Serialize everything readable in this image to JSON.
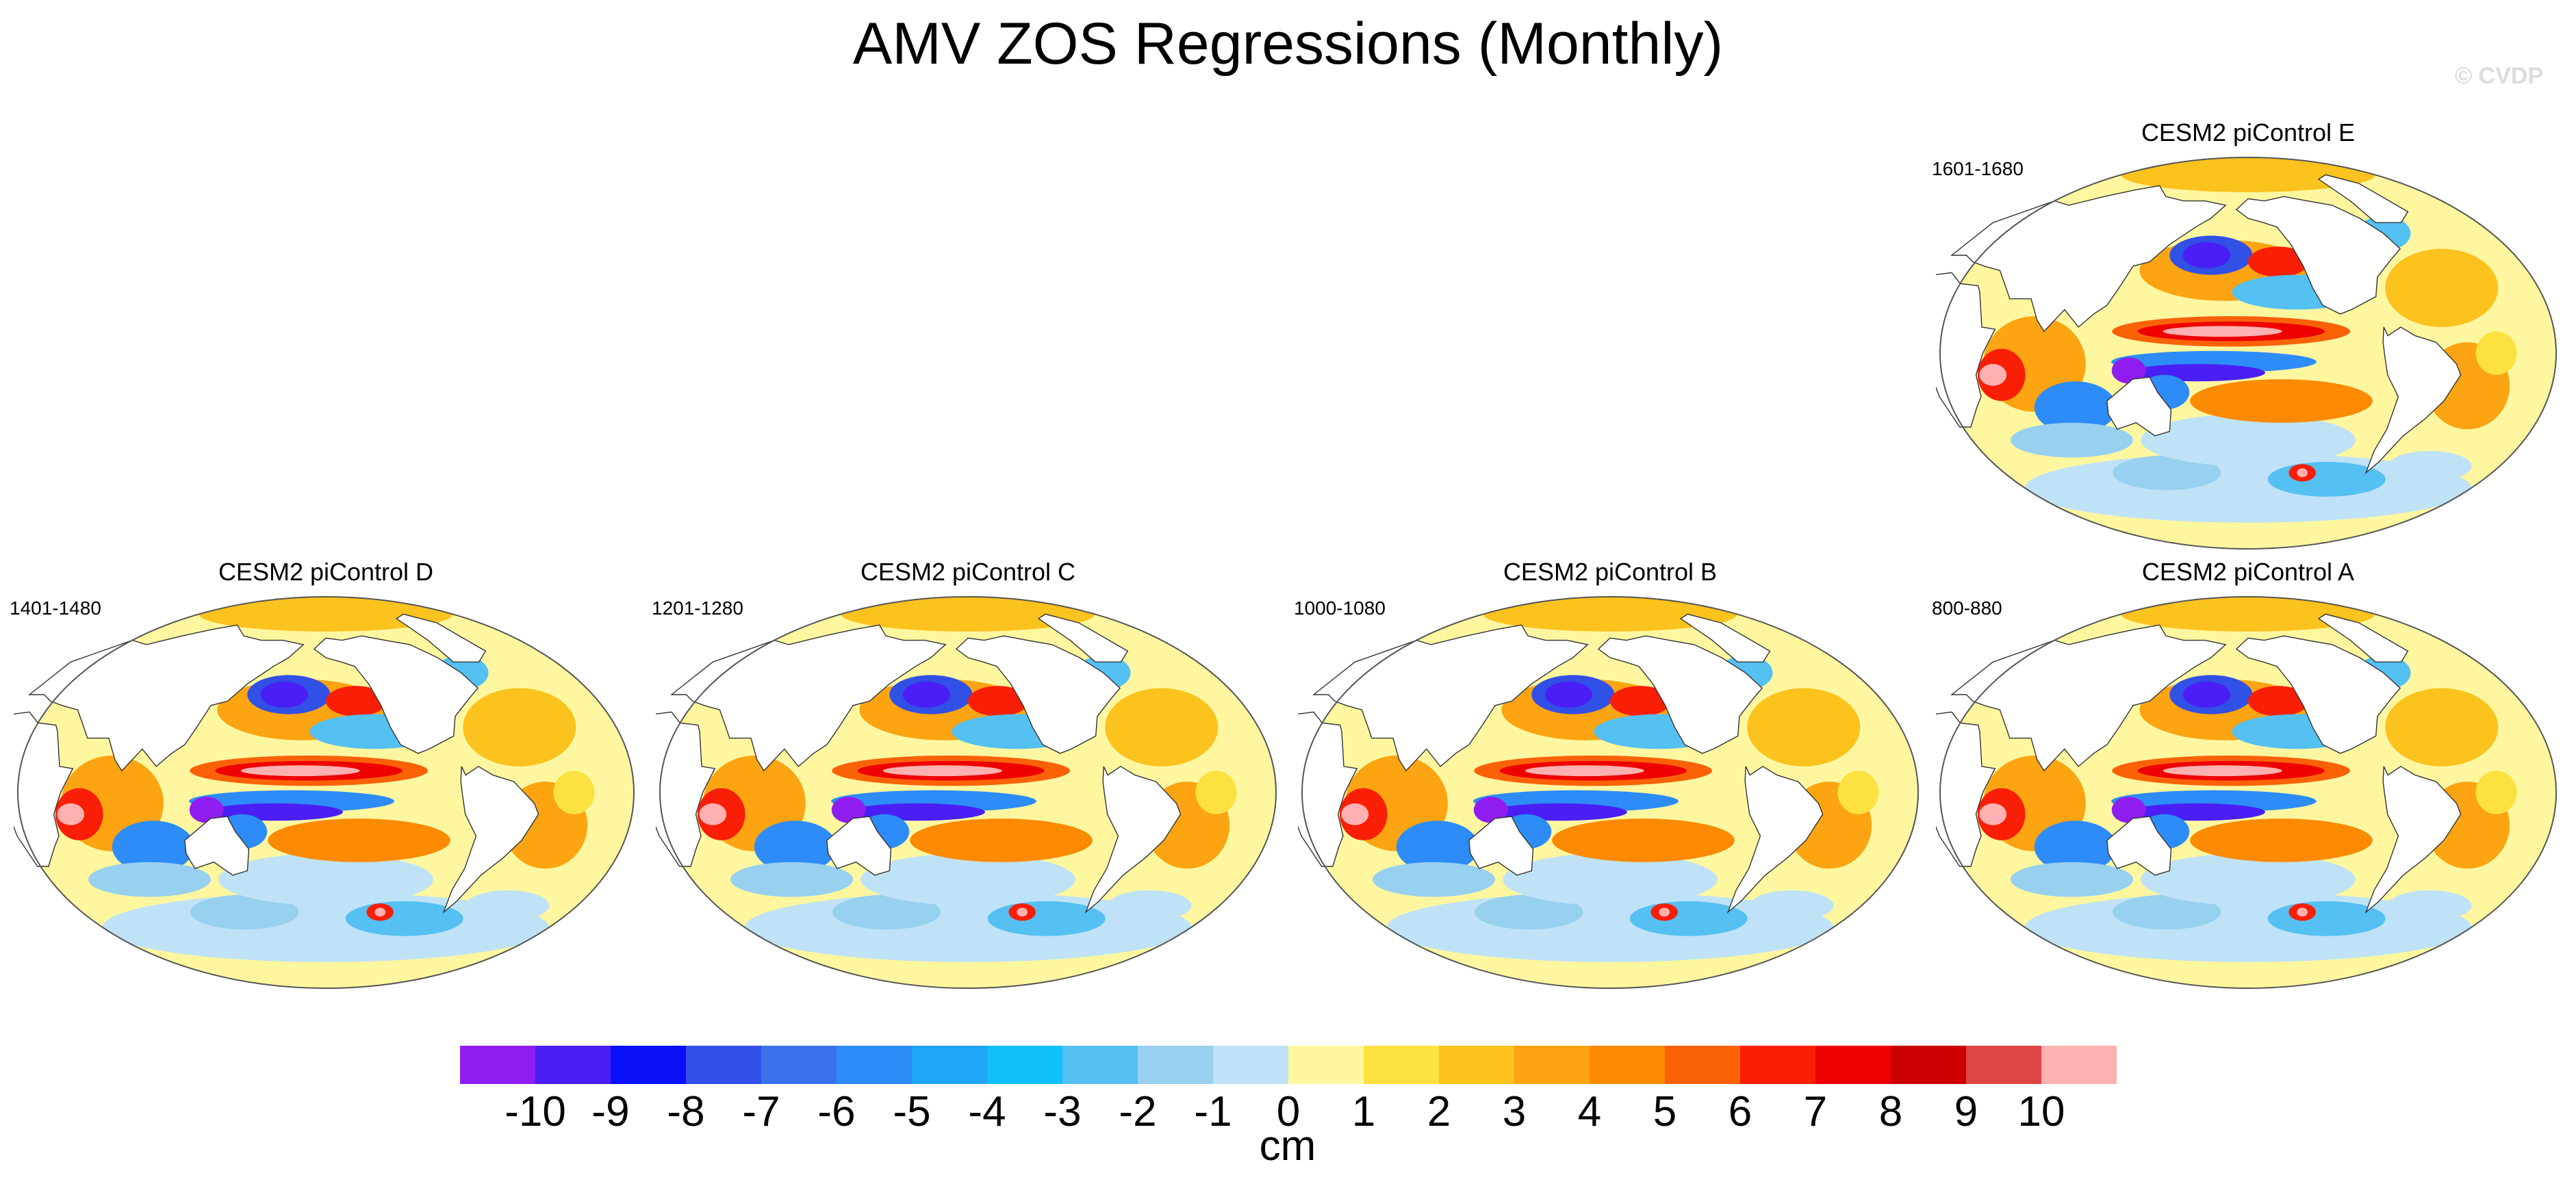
{
  "title": "AMV ZOS Regressions (Monthly)",
  "watermark": "© CVDP",
  "chart_data": {
    "type": "heatmap",
    "title": "AMV ZOS Regressions (Monthly)",
    "variable": "ZOS",
    "units": "cm",
    "panels": [
      {
        "title": "CESM2 piControl E",
        "years": "1601-1680"
      },
      {
        "title": "CESM2 piControl D",
        "years": "1401-1480"
      },
      {
        "title": "CESM2 piControl C",
        "years": "1201-1280"
      },
      {
        "title": "CESM2 piControl B",
        "years": "1000-1080"
      },
      {
        "title": "CESM2 piControl A",
        "years": "800-880"
      }
    ],
    "colorbar": {
      "levels": [
        "-10",
        "-9",
        "-8",
        "-7",
        "-6",
        "-5",
        "-4",
        "-3",
        "-2",
        "-1",
        "0",
        "1",
        "2",
        "3",
        "4",
        "5",
        "6",
        "7",
        "8",
        "9",
        "10"
      ],
      "colors": [
        "#8f1df0",
        "#4a1ff5",
        "#0a10f5",
        "#3050e6",
        "#3a70ea",
        "#2d8cf7",
        "#20a5f7",
        "#12c0fa",
        "#55c0f2",
        "#98d0ef",
        "#bfe2f6",
        "#fef7a0",
        "#fde141",
        "#fcc21e",
        "#fca412",
        "#fc8a02",
        "#fb6208",
        "#f81f06",
        "#ee0001",
        "#cc0000",
        "#dd4545",
        "#ffb0b0"
      ],
      "label": "cm",
      "range": [
        -10,
        10
      ]
    }
  }
}
